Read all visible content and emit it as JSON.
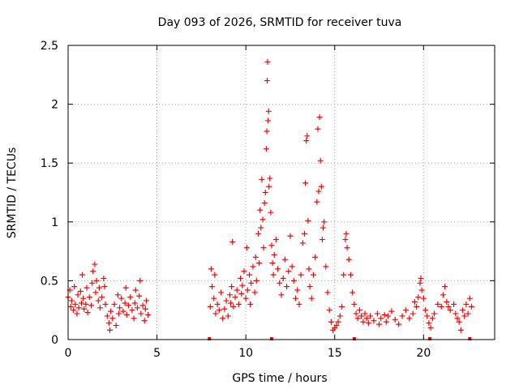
{
  "chart_data": {
    "type": "scatter",
    "title": "Day 093 of 2026, SRMTID for receiver tuva",
    "xlabel": "GPS time / hours",
    "ylabel": "SRMTID / TECUs",
    "xlim": [
      0,
      24
    ],
    "ylim": [
      0,
      2.5
    ],
    "xticks": [
      0,
      5,
      10,
      15,
      20
    ],
    "xtick_labels": [
      "0",
      "5",
      "10",
      "15",
      "20"
    ],
    "yticks": [
      0,
      0.5,
      1,
      1.5,
      2,
      2.5
    ],
    "ytick_labels": [
      "0",
      "0.5",
      "1",
      "1.5",
      "2",
      "2.5"
    ],
    "grid": true,
    "marker": "+",
    "series_color": "#ff0000",
    "series": [
      {
        "name": "SRMTID",
        "points": [
          [
            0.0,
            0.36
          ],
          [
            0.1,
            0.42
          ],
          [
            0.15,
            0.28
          ],
          [
            0.2,
            0.33
          ],
          [
            0.3,
            0.25
          ],
          [
            0.35,
            0.45
          ],
          [
            0.4,
            0.3
          ],
          [
            0.5,
            0.22
          ],
          [
            0.55,
            0.38
          ],
          [
            0.6,
            0.27
          ],
          [
            0.7,
            0.41
          ],
          [
            0.75,
            0.31
          ],
          [
            0.8,
            0.55
          ],
          [
            0.85,
            0.35
          ],
          [
            0.9,
            0.26
          ],
          [
            1.0,
            0.3
          ],
          [
            1.05,
            0.44
          ],
          [
            1.1,
            0.23
          ],
          [
            1.2,
            0.36
          ],
          [
            1.3,
            0.29
          ],
          [
            1.35,
            0.48
          ],
          [
            1.4,
            0.58
          ],
          [
            1.5,
            0.64
          ],
          [
            1.55,
            0.4
          ],
          [
            1.6,
            0.5
          ],
          [
            1.7,
            0.33
          ],
          [
            1.75,
            0.44
          ],
          [
            1.8,
            0.27
          ],
          [
            1.9,
            0.36
          ],
          [
            2.0,
            0.52
          ],
          [
            2.05,
            0.45
          ],
          [
            2.1,
            0.3
          ],
          [
            2.2,
            0.2
          ],
          [
            2.3,
            0.14
          ],
          [
            2.35,
            0.08
          ],
          [
            2.4,
            0.24
          ],
          [
            2.5,
            0.18
          ],
          [
            2.6,
            0.3
          ],
          [
            2.7,
            0.12
          ],
          [
            2.8,
            0.38
          ],
          [
            2.85,
            0.22
          ],
          [
            2.9,
            0.27
          ],
          [
            3.0,
            0.35
          ],
          [
            3.1,
            0.24
          ],
          [
            3.2,
            0.31
          ],
          [
            3.25,
            0.44
          ],
          [
            3.3,
            0.21
          ],
          [
            3.4,
            0.29
          ],
          [
            3.5,
            0.36
          ],
          [
            3.6,
            0.25
          ],
          [
            3.7,
            0.18
          ],
          [
            3.75,
            0.31
          ],
          [
            3.8,
            0.42
          ],
          [
            3.9,
            0.27
          ],
          [
            4.0,
            0.37
          ],
          [
            4.05,
            0.5
          ],
          [
            4.1,
            0.22
          ],
          [
            4.2,
            0.29
          ],
          [
            4.3,
            0.16
          ],
          [
            4.35,
            0.26
          ],
          [
            4.4,
            0.33
          ],
          [
            4.5,
            0.21
          ],
          [
            8.0,
            0.28
          ],
          [
            8.05,
            0.6
          ],
          [
            8.1,
            0.45
          ],
          [
            8.2,
            0.35
          ],
          [
            8.25,
            0.55
          ],
          [
            8.3,
            0.22
          ],
          [
            8.4,
            0.3
          ],
          [
            8.5,
            0.25
          ],
          [
            8.6,
            0.4
          ],
          [
            8.7,
            0.18
          ],
          [
            8.8,
            0.26
          ],
          [
            8.9,
            0.33
          ],
          [
            9.0,
            0.2
          ],
          [
            9.1,
            0.38
          ],
          [
            9.15,
            0.31
          ],
          [
            9.2,
            0.45
          ],
          [
            9.25,
            0.83
          ],
          [
            9.3,
            0.28
          ],
          [
            9.4,
            0.36
          ],
          [
            9.5,
            0.42
          ],
          [
            9.6,
            0.3
          ],
          [
            9.7,
            0.52
          ],
          [
            9.75,
            0.39
          ],
          [
            9.8,
            0.46
          ],
          [
            9.9,
            0.58
          ],
          [
            10.0,
            0.35
          ],
          [
            10.05,
            0.78
          ],
          [
            10.1,
            0.42
          ],
          [
            10.2,
            0.55
          ],
          [
            10.25,
            0.3
          ],
          [
            10.3,
            0.48
          ],
          [
            10.4,
            0.62
          ],
          [
            10.5,
            0.4
          ],
          [
            10.55,
            0.7
          ],
          [
            10.6,
            0.5
          ],
          [
            10.7,
            0.9
          ],
          [
            10.75,
            0.65
          ],
          [
            10.8,
            1.1
          ],
          [
            10.85,
            0.95
          ],
          [
            10.9,
            1.36
          ],
          [
            10.95,
            1.02
          ],
          [
            11.0,
            0.78
          ],
          [
            11.05,
            1.16
          ],
          [
            11.1,
            1.25
          ],
          [
            11.15,
            1.62
          ],
          [
            11.18,
            1.77
          ],
          [
            11.2,
            2.2
          ],
          [
            11.22,
            2.36
          ],
          [
            11.25,
            1.86
          ],
          [
            11.28,
            1.94
          ],
          [
            11.3,
            1.3
          ],
          [
            11.35,
            1.37
          ],
          [
            11.4,
            1.08
          ],
          [
            11.45,
            0.8
          ],
          [
            11.5,
            0.65
          ],
          [
            11.55,
            0.55
          ],
          [
            11.6,
            0.72
          ],
          [
            11.7,
            0.85
          ],
          [
            11.8,
            0.6
          ],
          [
            11.9,
            0.48
          ],
          [
            12.0,
            0.38
          ],
          [
            12.1,
            0.52
          ],
          [
            12.2,
            0.68
          ],
          [
            12.3,
            0.45
          ],
          [
            12.4,
            0.58
          ],
          [
            12.5,
            0.88
          ],
          [
            12.6,
            0.62
          ],
          [
            12.7,
            0.5
          ],
          [
            12.8,
            0.35
          ],
          [
            12.9,
            0.42
          ],
          [
            13.0,
            0.3
          ],
          [
            13.1,
            0.55
          ],
          [
            13.2,
            0.82
          ],
          [
            13.3,
            0.9
          ],
          [
            13.35,
            1.33
          ],
          [
            13.4,
            1.69
          ],
          [
            13.45,
            1.73
          ],
          [
            13.5,
            1.01
          ],
          [
            13.55,
            0.6
          ],
          [
            13.6,
            0.45
          ],
          [
            13.7,
            0.35
          ],
          [
            13.8,
            0.55
          ],
          [
            13.9,
            0.7
          ],
          [
            14.0,
            1.17
          ],
          [
            14.05,
            1.79
          ],
          [
            14.1,
            1.26
          ],
          [
            14.15,
            1.89
          ],
          [
            14.2,
            1.52
          ],
          [
            14.25,
            1.3
          ],
          [
            14.3,
            0.85
          ],
          [
            14.35,
            0.95
          ],
          [
            14.4,
            1.0
          ],
          [
            14.5,
            0.62
          ],
          [
            14.6,
            0.4
          ],
          [
            14.7,
            0.25
          ],
          [
            14.8,
            0.15
          ],
          [
            14.9,
            0.08
          ],
          [
            15.0,
            0.1
          ],
          [
            15.1,
            0.12
          ],
          [
            15.2,
            0.15
          ],
          [
            15.3,
            0.2
          ],
          [
            15.4,
            0.28
          ],
          [
            15.5,
            0.55
          ],
          [
            15.6,
            0.85
          ],
          [
            15.65,
            0.9
          ],
          [
            15.7,
            0.78
          ],
          [
            15.8,
            0.68
          ],
          [
            15.9,
            0.55
          ],
          [
            16.0,
            0.4
          ],
          [
            16.1,
            0.3
          ],
          [
            16.2,
            0.22
          ],
          [
            16.3,
            0.18
          ],
          [
            16.4,
            0.25
          ],
          [
            16.5,
            0.2
          ],
          [
            16.6,
            0.15
          ],
          [
            16.7,
            0.22
          ],
          [
            16.8,
            0.18
          ],
          [
            16.9,
            0.14
          ],
          [
            17.0,
            0.2
          ],
          [
            17.2,
            0.16
          ],
          [
            17.4,
            0.22
          ],
          [
            17.5,
            0.13
          ],
          [
            17.6,
            0.18
          ],
          [
            17.8,
            0.21
          ],
          [
            17.9,
            0.15
          ],
          [
            18.0,
            0.2
          ],
          [
            18.2,
            0.24
          ],
          [
            18.4,
            0.17
          ],
          [
            18.6,
            0.13
          ],
          [
            18.8,
            0.2
          ],
          [
            19.0,
            0.25
          ],
          [
            19.2,
            0.18
          ],
          [
            19.4,
            0.22
          ],
          [
            19.5,
            0.32
          ],
          [
            19.6,
            0.28
          ],
          [
            19.7,
            0.36
          ],
          [
            19.8,
            0.48
          ],
          [
            19.85,
            0.52
          ],
          [
            19.9,
            0.42
          ],
          [
            20.0,
            0.35
          ],
          [
            20.1,
            0.25
          ],
          [
            20.2,
            0.2
          ],
          [
            20.3,
            0.14
          ],
          [
            20.4,
            0.1
          ],
          [
            20.5,
            0.18
          ],
          [
            20.6,
            0.22
          ],
          [
            20.8,
            0.3
          ],
          [
            21.0,
            0.28
          ],
          [
            21.1,
            0.38
          ],
          [
            21.2,
            0.45
          ],
          [
            21.3,
            0.32
          ],
          [
            21.4,
            0.28
          ],
          [
            21.5,
            0.25
          ],
          [
            21.7,
            0.3
          ],
          [
            21.8,
            0.22
          ],
          [
            21.9,
            0.18
          ],
          [
            22.0,
            0.15
          ],
          [
            22.1,
            0.08
          ],
          [
            22.2,
            0.25
          ],
          [
            22.3,
            0.2
          ],
          [
            22.4,
            0.3
          ],
          [
            22.5,
            0.22
          ],
          [
            22.6,
            0.35
          ],
          [
            22.7,
            0.28
          ]
        ]
      }
    ],
    "gap_markers_x": [
      7.95,
      11.45,
      16.1,
      20.35,
      22.6
    ]
  }
}
